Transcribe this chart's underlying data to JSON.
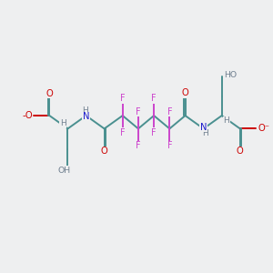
{
  "background_color": "#eeeff0",
  "teal": "#4a9090",
  "red": "#cc0000",
  "blue": "#1a1acc",
  "magenta": "#cc44cc",
  "gray": "#708090",
  "figsize": [
    3.0,
    3.0
  ],
  "dpi": 100,
  "xlim": [
    0,
    10
  ],
  "ylim": [
    0,
    10
  ]
}
